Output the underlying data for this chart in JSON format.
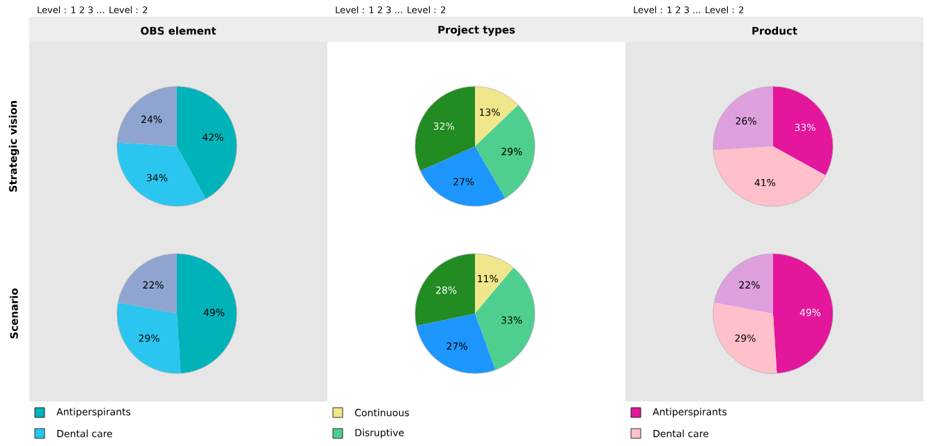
{
  "chart_data": [
    {
      "type": "pie",
      "title": "OBS element",
      "ylabel": "Strategic vision",
      "annotations": [
        "Level :  1 2 3  ...  Level : 2"
      ],
      "categories": [
        null,
        null,
        null
      ],
      "values": [
        42,
        34,
        24
      ],
      "value_labels": [
        "42%",
        "34%",
        "24%"
      ],
      "colors": [
        "#00b3b8",
        "#2ac6ef",
        "#8fa4cf"
      ],
      "legend": false
    },
    {
      "type": "pie",
      "title": "Project types",
      "annotations": [
        "Level :  1 2 3  ...  Level : 2"
      ],
      "categories": [
        null,
        null,
        null,
        null
      ],
      "values": [
        13,
        29,
        27,
        32
      ],
      "value_labels": [
        "13%",
        "29%",
        "27%",
        "32%"
      ],
      "colors": [
        "#f0e68c",
        "#4fcf8f",
        "#1e96ff",
        "#228b22"
      ],
      "legend": false
    },
    {
      "type": "pie",
      "title": "Product",
      "annotations": [
        "Level :  1 2 3  ...  Level : 2"
      ],
      "categories": [
        null,
        null,
        null
      ],
      "values": [
        33,
        41,
        26
      ],
      "value_labels": [
        "33%",
        "41%",
        "26%"
      ],
      "colors": [
        "#e4169b",
        "#ffc0cb",
        "#dda0dd"
      ],
      "legend": false
    },
    {
      "type": "pie",
      "ylabel": "Scenario",
      "categories": [
        "Antiperspirants",
        "Dental care",
        null
      ],
      "values": [
        49,
        29,
        22
      ],
      "value_labels": [
        "49%",
        "29%",
        "22%"
      ],
      "colors": [
        "#00b3b8",
        "#2ac6ef",
        "#8fa4cf"
      ],
      "legend": "bottom"
    },
    {
      "type": "pie",
      "categories": [
        "Continuous",
        "Disruptive",
        null,
        null
      ],
      "values": [
        11,
        33,
        27,
        28
      ],
      "value_labels": [
        "11%",
        "33%",
        "27%",
        "28%"
      ],
      "colors": [
        "#f0e68c",
        "#4fcf8f",
        "#1e96ff",
        "#228b22"
      ],
      "legend": "bottom"
    },
    {
      "type": "pie",
      "categories": [
        "Antiperspirants",
        "Dental care",
        null
      ],
      "values": [
        49,
        29,
        22
      ],
      "value_labels": [
        "49%",
        "29%",
        "22%"
      ],
      "colors": [
        "#e4169b",
        "#ffc0cb",
        "#dda0dd"
      ],
      "legend": "bottom"
    }
  ]
}
